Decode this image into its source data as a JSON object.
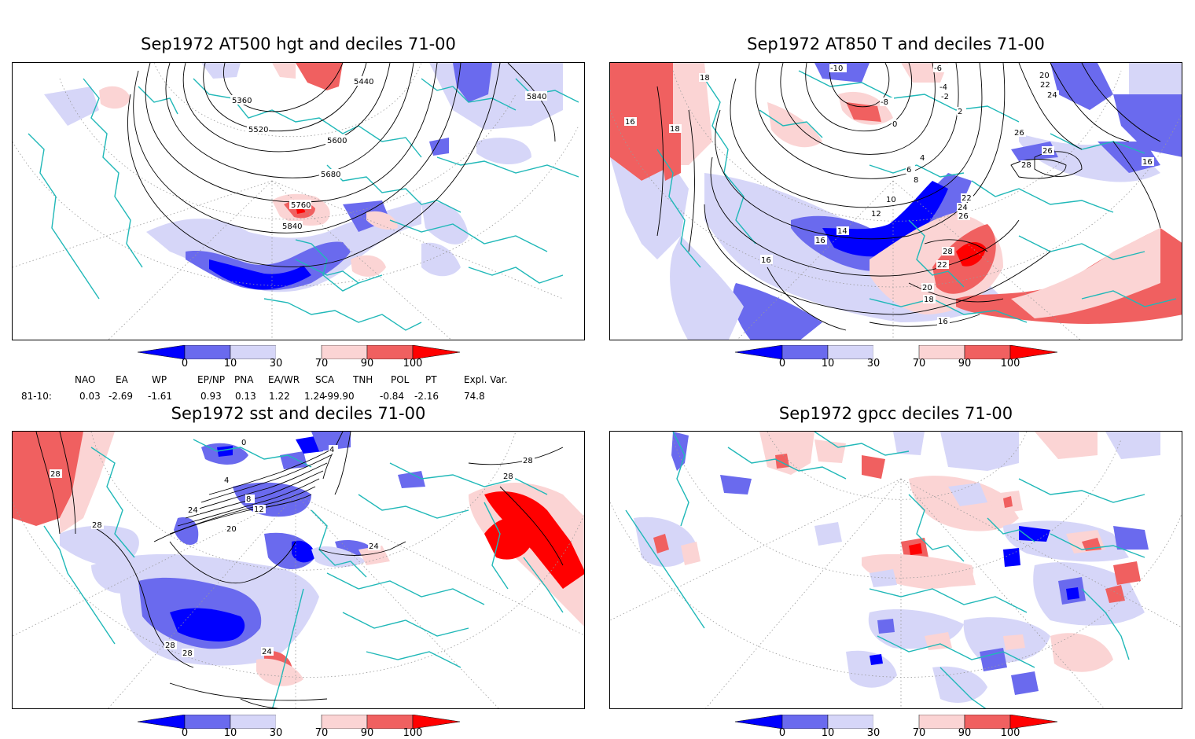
{
  "panels": {
    "p1": {
      "title": "Sep1972 AT500 hgt and deciles 71-00",
      "contour_labels": [
        "5360",
        "5440",
        "5520",
        "5600",
        "5680",
        "5760",
        "5840",
        "5840"
      ]
    },
    "p2": {
      "title": "Sep1972 AT850 T and deciles 71-00",
      "contour_labels": [
        "18",
        "16",
        "18",
        "-10",
        "-8",
        "-6",
        "-4",
        "-2",
        "0",
        "2",
        "4",
        "6",
        "8",
        "10",
        "12",
        "14",
        "16",
        "16",
        "16",
        "20",
        "22",
        "24",
        "26",
        "26",
        "28",
        "24",
        "22",
        "28",
        "26",
        "22",
        "20",
        "18",
        "16",
        "16"
      ]
    },
    "p3": {
      "title": "Sep1972 sst and deciles 71-00",
      "contour_labels": [
        "28",
        "28",
        "0",
        "4",
        "4",
        "8",
        "12",
        "20",
        "24",
        "28",
        "28",
        "24",
        "28",
        "28",
        "24"
      ]
    },
    "p4": {
      "title": "Sep1972 gpcc deciles 71-00",
      "contour_labels": []
    }
  },
  "colorbar": {
    "ticks": [
      "0",
      "10",
      "30",
      "70",
      "90",
      "100"
    ],
    "colors": [
      "#0000ff",
      "#6a6aee",
      "#d6d6f8",
      "#ffffff",
      "#fbd4d4",
      "#f06060",
      "#ff0000"
    ]
  },
  "indices": {
    "headers": [
      "NAO",
      "EA",
      "WP",
      "EP/NP",
      "PNA",
      "EA/WR",
      "SCA",
      "TNH",
      "POL",
      "PT",
      "Expl. Var."
    ],
    "row_label": "81-10:",
    "values": [
      "0.03",
      "-2.69",
      "-1.61",
      "0.93",
      "0.13",
      "1.22",
      "1.24",
      "-99.90",
      "-0.84",
      "-2.16",
      "74.8"
    ]
  },
  "style": {
    "coast_color": "#20b8b8",
    "grid_color": "#9a9a9a",
    "contour_color": "#000000"
  }
}
